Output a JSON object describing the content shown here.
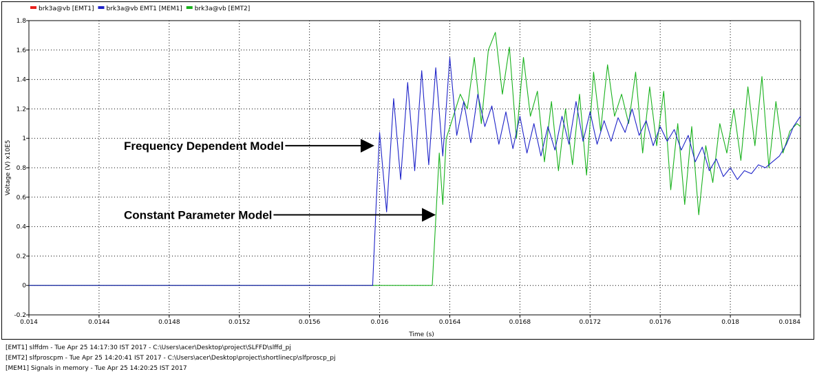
{
  "chart_data": {
    "type": "line",
    "title": "",
    "xlabel": "Time (s)",
    "ylabel": "Voltage (V) x10E5",
    "xlim": [
      0.014,
      0.0184
    ],
    "ylim": [
      -0.2,
      1.8
    ],
    "x_ticks": [
      "0.014",
      "0.0144",
      "0.0148",
      "0.0152",
      "0.0156",
      "0.016",
      "0.0164",
      "0.0168",
      "0.0172",
      "0.0176",
      "0.018",
      "0.0184"
    ],
    "y_ticks": [
      "-0.2",
      "0",
      "0.2",
      "0.4",
      "0.6",
      "0.8",
      "1",
      "1.2",
      "1.4",
      "1.6",
      "1.8"
    ],
    "grid": true,
    "legend_position": "top-left",
    "series": [
      {
        "name": "brk3a@vb [EMT1]",
        "color": "#e8201c",
        "x": [
          0.014,
          0.01596
        ],
        "y": [
          0,
          0
        ]
      },
      {
        "name": "brk3a@vb EMT1 [MEM1]",
        "color": "#1d22c8",
        "x": [
          0.014,
          0.01596,
          0.01598,
          0.016,
          0.01604,
          0.01608,
          0.01612,
          0.01616,
          0.0162,
          0.01624,
          0.01628,
          0.01632,
          0.01636,
          0.0164,
          0.01644,
          0.01648,
          0.01652,
          0.01656,
          0.0166,
          0.01664,
          0.01668,
          0.01672,
          0.01676,
          0.0168,
          0.01684,
          0.01688,
          0.01692,
          0.01696,
          0.017,
          0.01704,
          0.01708,
          0.01712,
          0.01716,
          0.0172,
          0.01724,
          0.01728,
          0.01732,
          0.01736,
          0.0174,
          0.01744,
          0.01748,
          0.01752,
          0.01756,
          0.0176,
          0.01764,
          0.01768,
          0.01772,
          0.01776,
          0.0178,
          0.01784,
          0.01788,
          0.01792,
          0.01796,
          0.018,
          0.01804,
          0.01808,
          0.01812,
          0.01816,
          0.0182,
          0.01824,
          0.01828,
          0.01832,
          0.01836,
          0.0184
        ],
        "y": [
          0,
          0,
          0.55,
          1.04,
          0.5,
          1.27,
          0.72,
          1.38,
          0.78,
          1.46,
          0.82,
          1.48,
          0.88,
          1.55,
          1.02,
          1.25,
          0.97,
          1.3,
          1.08,
          1.22,
          0.96,
          1.18,
          0.93,
          1.15,
          0.9,
          1.1,
          0.88,
          1.08,
          0.92,
          1.15,
          0.96,
          1.25,
          0.98,
          1.18,
          0.96,
          1.12,
          0.98,
          1.14,
          1.04,
          1.2,
          1.02,
          1.12,
          0.95,
          1.08,
          0.98,
          1.06,
          0.92,
          1.02,
          0.84,
          0.94,
          0.78,
          0.86,
          0.74,
          0.8,
          0.72,
          0.78,
          0.76,
          0.82,
          0.8,
          0.84,
          0.88,
          0.96,
          1.08,
          1.15
        ]
      },
      {
        "name": "brk3a@vb [EMT2]",
        "color": "#18b11c",
        "x": [
          0.014,
          0.0163,
          0.01634,
          0.01636,
          0.01638,
          0.01642,
          0.01646,
          0.0165,
          0.01654,
          0.01658,
          0.01662,
          0.01666,
          0.0167,
          0.01674,
          0.01678,
          0.01682,
          0.01686,
          0.0169,
          0.01694,
          0.01698,
          0.01702,
          0.01706,
          0.0171,
          0.01714,
          0.01718,
          0.01722,
          0.01726,
          0.0173,
          0.01734,
          0.01738,
          0.01742,
          0.01746,
          0.0175,
          0.01754,
          0.01758,
          0.01762,
          0.01766,
          0.0177,
          0.01774,
          0.01778,
          0.01782,
          0.01786,
          0.0179,
          0.01794,
          0.01798,
          0.01802,
          0.01806,
          0.0181,
          0.01814,
          0.01818,
          0.01822,
          0.01826,
          0.0183,
          0.01834,
          0.01838,
          0.0184
        ],
        "y": [
          0,
          0,
          0.9,
          0.55,
          1.0,
          1.15,
          1.3,
          1.2,
          1.55,
          1.1,
          1.6,
          1.72,
          1.3,
          1.62,
          1.0,
          1.55,
          1.15,
          1.32,
          0.84,
          1.25,
          0.78,
          1.2,
          0.82,
          1.3,
          0.75,
          1.45,
          1.05,
          1.5,
          1.15,
          1.3,
          1.1,
          1.45,
          0.9,
          1.35,
          0.95,
          1.32,
          0.65,
          1.1,
          0.55,
          1.08,
          0.48,
          0.95,
          0.7,
          1.1,
          0.9,
          1.2,
          0.85,
          1.35,
          0.95,
          1.42,
          0.8,
          1.25,
          0.9,
          1.05,
          1.1,
          1.08
        ]
      }
    ],
    "annotations": [
      {
        "text": "Frequency Dependent Model",
        "target_x": 0.01597,
        "target_y": 0.95
      },
      {
        "text": "Constant Parameter Model",
        "target_x": 0.01632,
        "target_y": 0.48
      }
    ]
  },
  "footer": {
    "lines": [
      "[EMT1] slffdm - Tue Apr 25 14:17:30 IST 2017 - C:\\Users\\acer\\Desktop\\project\\SLFFD\\slffd_pj",
      "[EMT2] slfproscpm - Tue Apr 25 14:20:41 IST 2017 - C:\\Users\\acer\\Desktop\\project\\shortlinecp\\slfproscp_pj",
      "[MEM1] Signals in memory - Tue Apr 25 14:20:25 IST 2017"
    ]
  }
}
